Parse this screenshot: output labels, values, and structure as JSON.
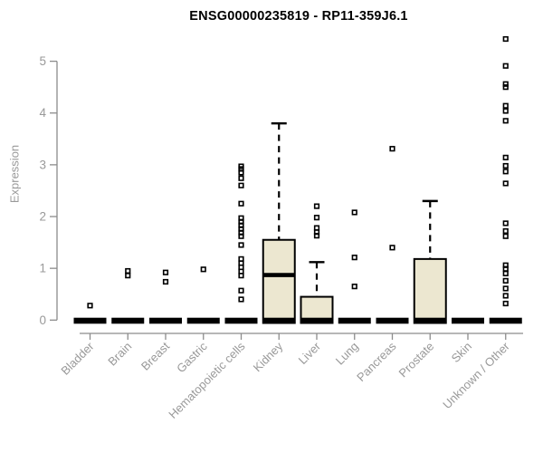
{
  "chart_data": {
    "type": "boxplot",
    "title": "ENSG00000235819 - RP11-359J6.1",
    "ylabel": "Expression",
    "xlabel": "",
    "ylim": [
      0,
      5.5
    ],
    "yticks": [
      0,
      1,
      2,
      3,
      4,
      5
    ],
    "grid": false,
    "legend": "none",
    "colors": {
      "box_fill": "#ece7d0",
      "box_stroke": "#000000",
      "median": "#000000",
      "outlier": "#000000",
      "axis_line": "#8c8c8c",
      "tick_label": "#999999",
      "title": "#000000"
    },
    "categories": [
      "Bladder",
      "Brain",
      "Breast",
      "Gastric",
      "Hematopoietic cells",
      "Kidney",
      "Liver",
      "Lung",
      "Pancreas",
      "Prostate",
      "Skin",
      "Unknown / Other"
    ],
    "series": [
      {
        "category": "Bladder",
        "q1": 0,
        "median": 0,
        "q3": 0,
        "whisker_low": 0,
        "whisker_high": 0,
        "outliers": [
          0.28
        ]
      },
      {
        "category": "Brain",
        "q1": 0,
        "median": 0,
        "q3": 0,
        "whisker_low": 0,
        "whisker_high": 0,
        "outliers": [
          0.95,
          0.86
        ]
      },
      {
        "category": "Breast",
        "q1": 0,
        "median": 0,
        "q3": 0,
        "whisker_low": 0,
        "whisker_high": 0,
        "outliers": [
          0.92,
          0.74
        ]
      },
      {
        "category": "Gastric",
        "q1": 0,
        "median": 0,
        "q3": 0,
        "whisker_low": 0,
        "whisker_high": 0,
        "outliers": [
          0.98
        ]
      },
      {
        "category": "Hematopoietic cells",
        "q1": 0,
        "median": 0,
        "q3": 0,
        "whisker_low": 0,
        "whisker_high": 0,
        "outliers": [
          2.97,
          2.92,
          2.85,
          2.74,
          2.6,
          2.25,
          1.97,
          1.9,
          1.83,
          1.76,
          1.69,
          1.62,
          1.45,
          1.18,
          1.1,
          1.02,
          0.94,
          0.86,
          0.57,
          0.4
        ]
      },
      {
        "category": "Kidney",
        "q1": 0,
        "median": 0.87,
        "q3": 1.55,
        "whisker_low": 0,
        "whisker_high": 3.8,
        "outliers": []
      },
      {
        "category": "Liver",
        "q1": 0,
        "median": 0,
        "q3": 0.45,
        "whisker_low": 0,
        "whisker_high": 1.12,
        "outliers": [
          2.2,
          1.98,
          1.78,
          1.7,
          1.63
        ]
      },
      {
        "category": "Lung",
        "q1": 0,
        "median": 0,
        "q3": 0,
        "whisker_low": 0,
        "whisker_high": 0,
        "outliers": [
          2.08,
          1.21,
          0.65
        ]
      },
      {
        "category": "Pancreas",
        "q1": 0,
        "median": 0,
        "q3": 0,
        "whisker_low": 0,
        "whisker_high": 0,
        "outliers": [
          3.31,
          1.4
        ]
      },
      {
        "category": "Prostate",
        "q1": 0,
        "median": 0,
        "q3": 1.18,
        "whisker_low": 0,
        "whisker_high": 2.3,
        "outliers": []
      },
      {
        "category": "Skin",
        "q1": 0,
        "median": 0,
        "q3": 0,
        "whisker_low": 0,
        "whisker_high": 0,
        "outliers": []
      },
      {
        "category": "Unknown / Other",
        "q1": 0,
        "median": 0,
        "q3": 0,
        "whisker_low": 0,
        "whisker_high": 0,
        "outliers": [
          5.43,
          4.91,
          4.56,
          4.5,
          4.14,
          4.04,
          3.85,
          3.14,
          2.98,
          2.87,
          2.64,
          1.87,
          1.72,
          1.62,
          1.06,
          0.99,
          0.9,
          0.76,
          0.61,
          0.47,
          0.32
        ]
      }
    ]
  }
}
